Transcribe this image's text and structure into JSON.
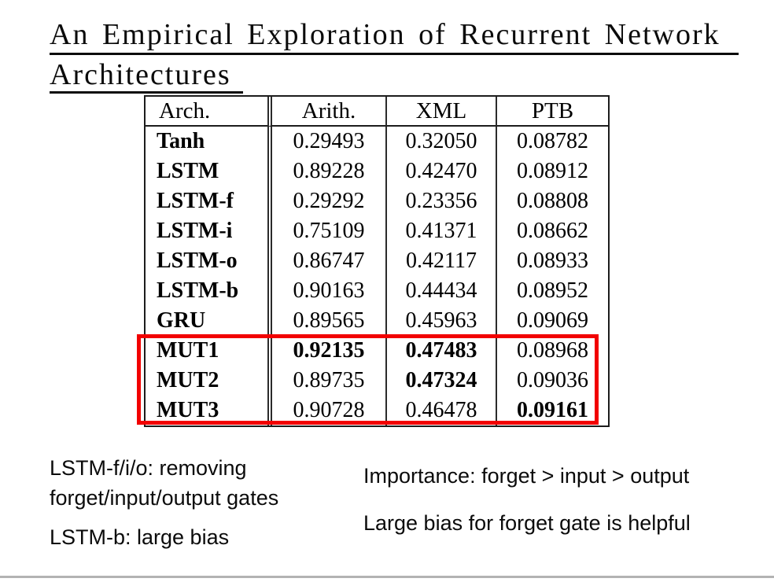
{
  "title": {
    "line1": "An Empirical Exploration of Recurrent Network",
    "line2": "Architectures"
  },
  "table": {
    "headers": [
      "Arch.",
      "Arith.",
      "XML",
      "PTB"
    ],
    "rows": [
      {
        "arch": "Tanh",
        "arith": "0.29493",
        "xml": "0.32050",
        "ptb": "0.08782",
        "bold": []
      },
      {
        "arch": "LSTM",
        "arith": "0.89228",
        "xml": "0.42470",
        "ptb": "0.08912",
        "bold": []
      },
      {
        "arch": "LSTM-f",
        "arith": "0.29292",
        "xml": "0.23356",
        "ptb": "0.08808",
        "bold": []
      },
      {
        "arch": "LSTM-i",
        "arith": "0.75109",
        "xml": "0.41371",
        "ptb": "0.08662",
        "bold": []
      },
      {
        "arch": "LSTM-o",
        "arith": "0.86747",
        "xml": "0.42117",
        "ptb": "0.08933",
        "bold": []
      },
      {
        "arch": "LSTM-b",
        "arith": "0.90163",
        "xml": "0.44434",
        "ptb": "0.08952",
        "bold": []
      },
      {
        "arch": "GRU",
        "arith": "0.89565",
        "xml": "0.45963",
        "ptb": "0.09069",
        "bold": []
      },
      {
        "arch": "MUT1",
        "arith": "0.92135",
        "xml": "0.47483",
        "ptb": "0.08968",
        "bold": [
          "arith",
          "xml"
        ]
      },
      {
        "arch": "MUT2",
        "arith": "0.89735",
        "xml": "0.47324",
        "ptb": "0.09036",
        "bold": [
          "xml"
        ]
      },
      {
        "arch": "MUT3",
        "arith": "0.90728",
        "xml": "0.46478",
        "ptb": "0.09161",
        "bold": [
          "ptb"
        ]
      }
    ],
    "highlighted_rows": [
      "MUT1",
      "MUT2",
      "MUT3"
    ]
  },
  "notes": {
    "left": {
      "line1": "LSTM-f/i/o: removing",
      "line2": "forget/input/output gates",
      "line3": "LSTM-b: large bias"
    },
    "right": {
      "line1": "Importance: forget > input > output",
      "line2": "Large bias for forget gate is helpful"
    }
  },
  "colors": {
    "highlight_box": "#f20000",
    "bottom_rule": "#b3b3b3"
  }
}
